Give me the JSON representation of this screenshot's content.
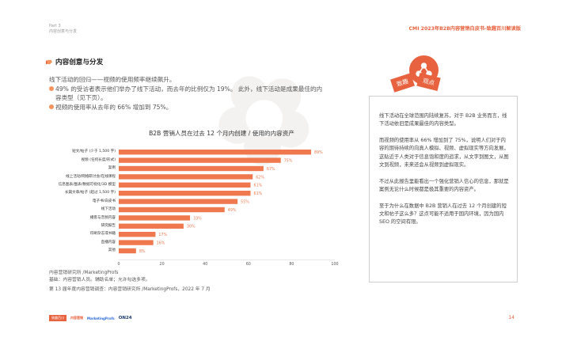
{
  "header": {
    "part": "Part 3",
    "part_sub": "内容创意与分发",
    "report_title": "CMI 2023年B2B内容营销白皮书-致趣百川解读版"
  },
  "section": {
    "title": "内容创意与分发"
  },
  "intro": {
    "line1": "线下活动的回归——视频的使用频率继续飙升。",
    "bullet1": "49% 的受访者表示他们举办了线下活动，而去年的比例仅为 19%。 此外，线下活动是成果最佳的内",
    "bullet1_cont": "容类型（见下页）。",
    "bullet2": "视频的使用率从去年的 66% 增加到 75%。"
  },
  "chart_data": {
    "type": "bar",
    "title": "B2B 营销人员在过去 12 个月内创建 / 使用的内容资产",
    "categories": [
      "短文/帖子 (少于 1,500 字)",
      "视频 (任何长度/形式)",
      "案例",
      "线上活动/网络研讨会/在线课程",
      "信息图表/图表/数据可视化/3D 模型",
      "长篇文章/帖子 (超过 1,500 字)",
      "电子书/白皮书",
      "线下活动",
      "播客与音频内容",
      "研究报告",
      "印刷杂志或书籍",
      "直播内容",
      "其他"
    ],
    "values": [
      89,
      75,
      67,
      62,
      61,
      61,
      55,
      49,
      33,
      30,
      17,
      16,
      8
    ],
    "value_labels": [
      "89%",
      "75%",
      "67%",
      "62%",
      "61%",
      "61%",
      "55%",
      "49%",
      "33%",
      "30%",
      "17%",
      "16%",
      "8%"
    ],
    "xticks": [
      "0",
      "20",
      "40",
      "60",
      "80",
      "100"
    ],
    "xlim": [
      0,
      100
    ],
    "bar_color": "#f0784f"
  },
  "source": {
    "line1": "内容营销研究所 /MarketingProfs",
    "line2": "基础：内容营销人员。辅助名单；允许勾选多项。",
    "line3": "第 13 届年度内容营销调查：内容营销研究所 /MarketingProfs，2022 年 7 月"
  },
  "sidebar": {
    "tags": [
      "致趣",
      "观点"
    ],
    "paragraphs": [
      "线下活动在全球范围内陆续复苏，对于 B2B 业务而言，线下活动依旧是成果最佳的内容类型。",
      "而视频的使用率从 66% 增加到了 75%，说明人们对于内容的期待持续的向真人模拟、视频、虚拟现实等方向发展，这贴近于人类对于信息饱和度的追求，从文字到图文，从图文到视频，未来还会从视频到虚拟现实。",
      "不过从此报告里能看出一个强化营销人信心的信息，那就是案例无论什么时候都是极其重要的内容资产。",
      "至于为什么在数据中 B2B 营销人在过去 12 个月创建的短文和帖子这么多？这点可能不适用于国内环境，因为国内 SEO 的空间有限。"
    ]
  },
  "footer": {
    "logos": [
      "致趣百川",
      "内容营销",
      "MarketingProfs",
      "ON24"
    ],
    "page_number": "14"
  },
  "colors": {
    "accent": "#e8623f",
    "bar": "#f0784f",
    "bullet": "#f5935f"
  }
}
